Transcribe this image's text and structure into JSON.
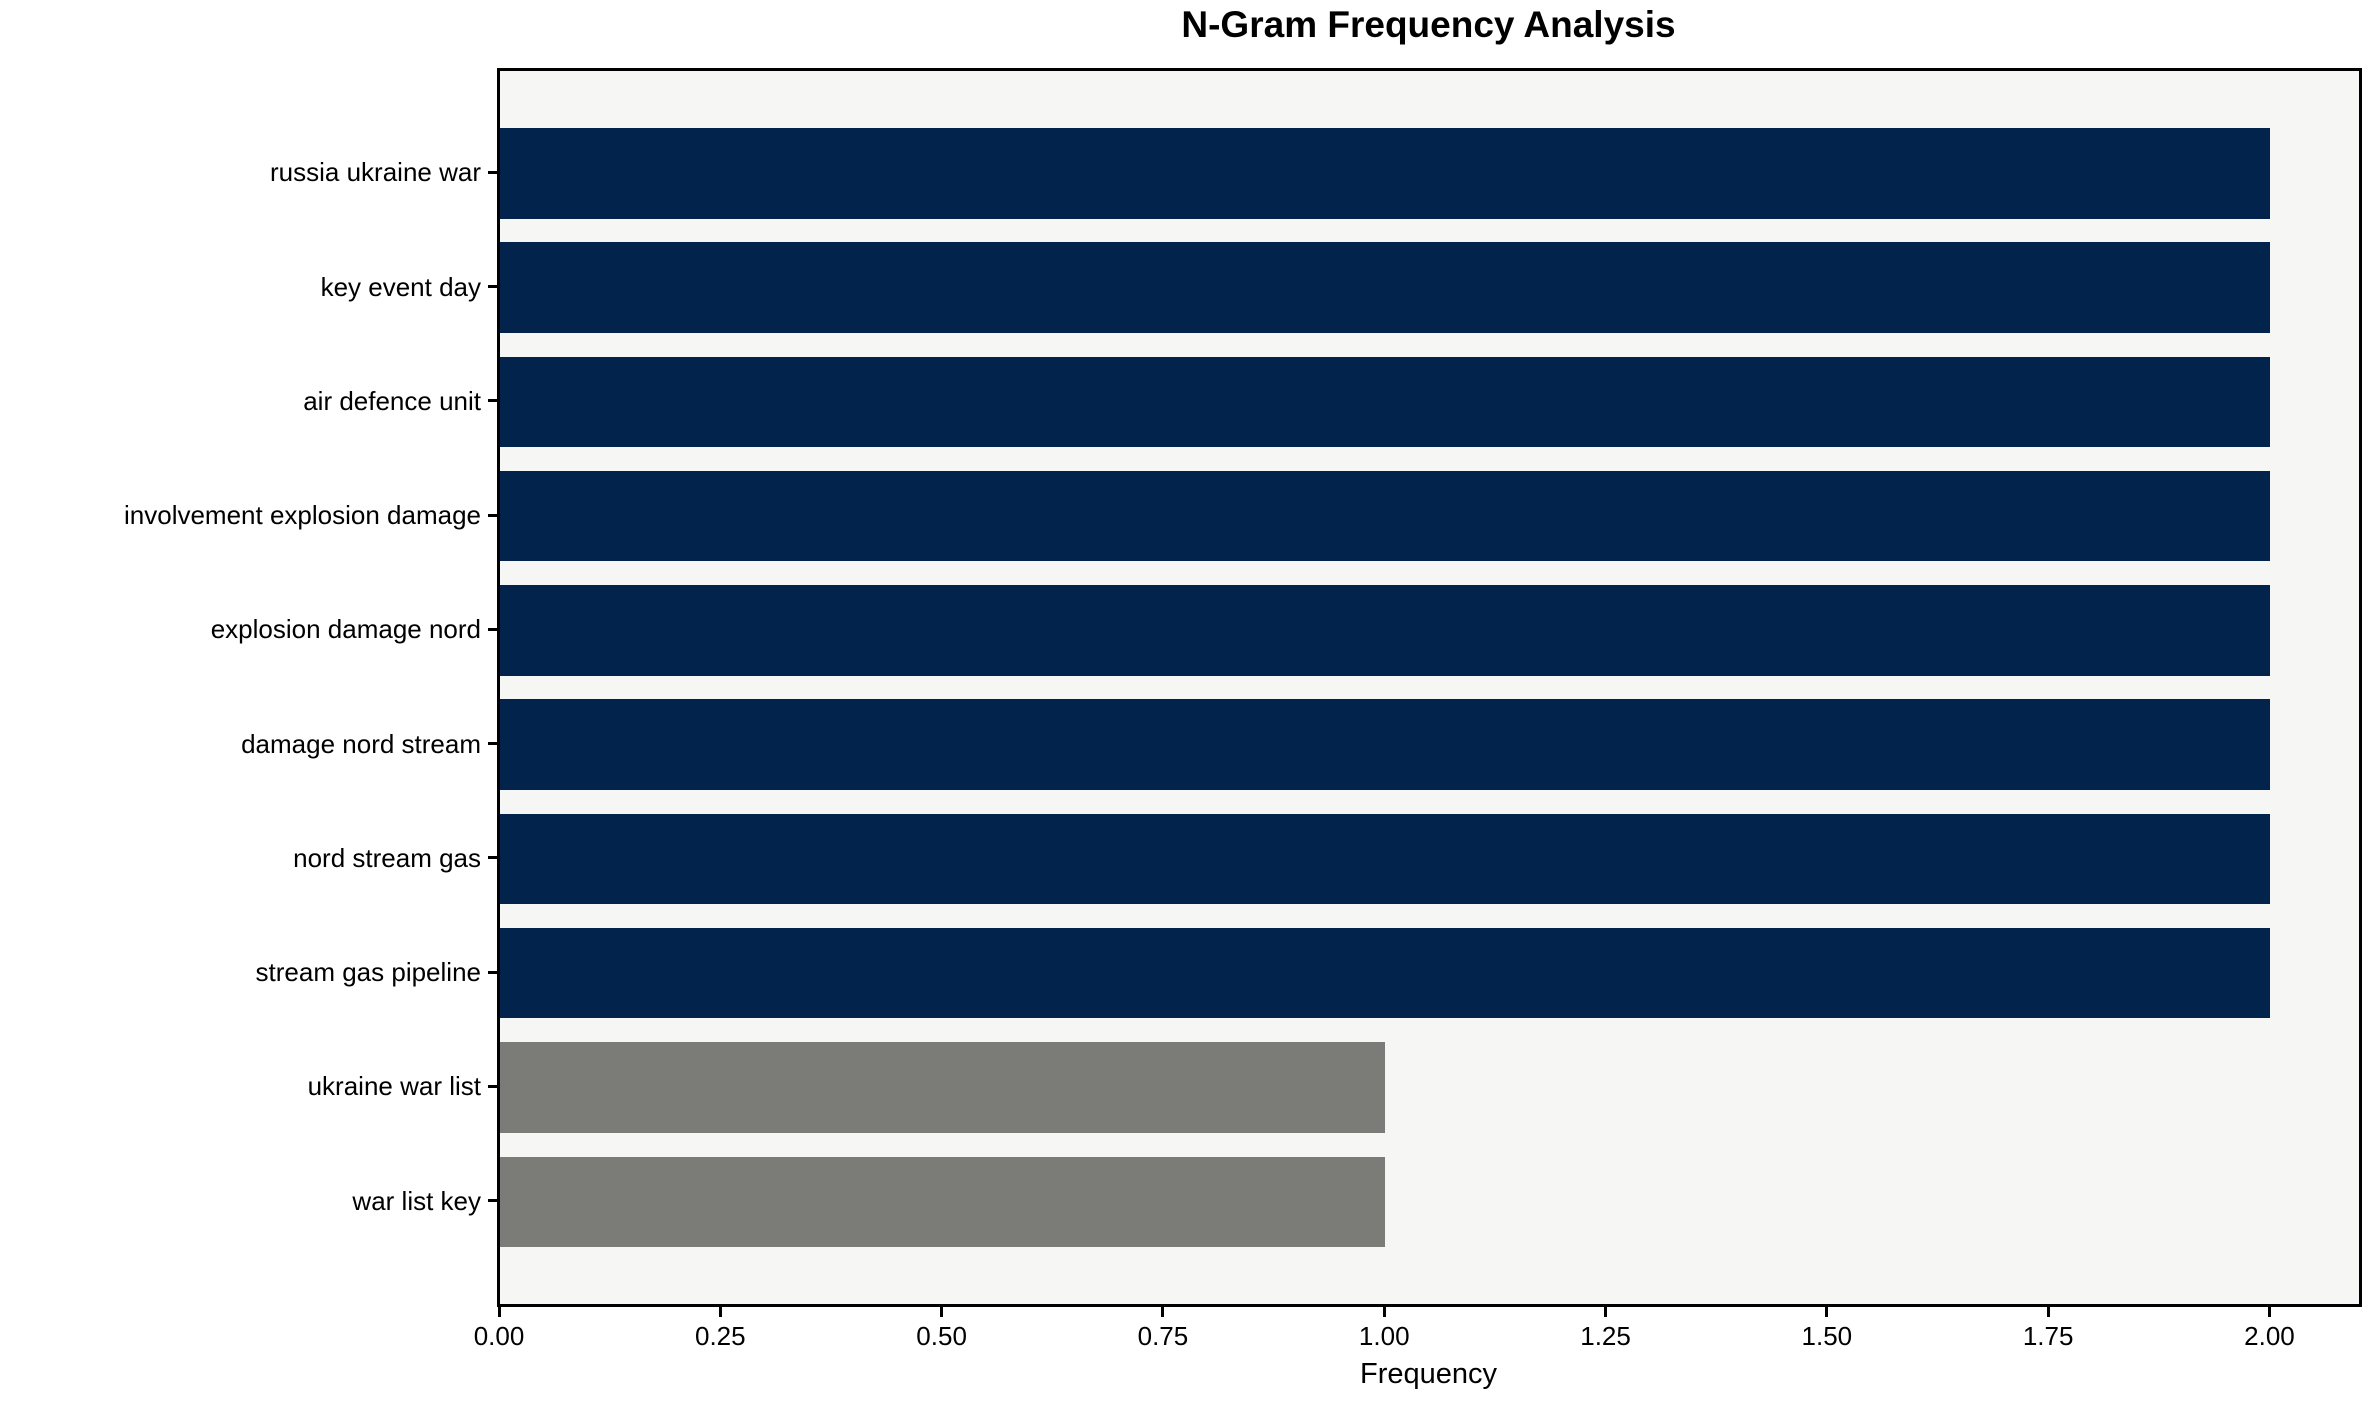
{
  "page": {
    "background": "#ffffff"
  },
  "chart_data": {
    "type": "bar",
    "orientation": "horizontal",
    "title": "N-Gram Frequency Analysis",
    "xlabel": "Frequency",
    "ylabel": "",
    "categories": [
      "russia ukraine war",
      "key event day",
      "air defence unit",
      "involvement explosion damage",
      "explosion damage nord",
      "damage nord stream",
      "nord stream gas",
      "stream gas pipeline",
      "ukraine war list",
      "war list key"
    ],
    "values": [
      2,
      2,
      2,
      2,
      2,
      2,
      2,
      2,
      1,
      1
    ],
    "bar_colors": [
      "#02234c",
      "#02234c",
      "#02234c",
      "#02234c",
      "#02234c",
      "#02234c",
      "#02234c",
      "#02234c",
      "#7b7b78",
      "#7b7b78"
    ],
    "xlim": [
      0,
      2.1
    ],
    "x_ticks": [
      0,
      0.25,
      0.5,
      0.75,
      1.0,
      1.25,
      1.5,
      1.75,
      2.0
    ],
    "x_tick_labels": [
      "0.00",
      "0.25",
      "0.50",
      "0.75",
      "1.00",
      "1.25",
      "1.50",
      "1.75",
      "2.00"
    ],
    "grid": false,
    "legend_position": "none",
    "plot_background": "#f6f6f5",
    "colors": {
      "frequency_2_bar": "#02234c",
      "frequency_1_bar": "#7b7b78",
      "axis_frame": "#000000",
      "text": "#000000"
    }
  }
}
